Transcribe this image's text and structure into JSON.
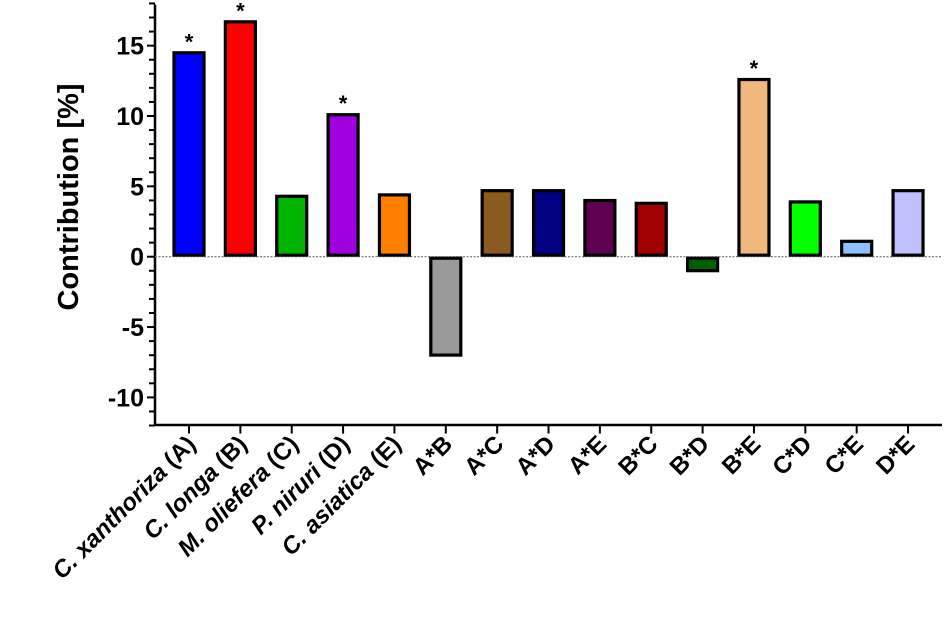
{
  "chart_data": {
    "type": "bar",
    "title": "",
    "xlabel": "",
    "ylabel": "Contribution [%]",
    "ylim": [
      -12,
      18
    ],
    "yticks": [
      -10,
      -5,
      0,
      5,
      10,
      15
    ],
    "yminor_step": 1,
    "grid": false,
    "legend": null,
    "zero_line": "dotted",
    "categories": [
      {
        "label": "C. xanthoriza (A)",
        "italic": "C. xanthoriza",
        "plain": " (A)"
      },
      {
        "label": "C. longa (B)",
        "italic": "C. longa",
        "plain": " (B)"
      },
      {
        "label": "M. oliefera (C)",
        "italic": "M. oliefera",
        "plain": " (C)"
      },
      {
        "label": "P. niruri (D)",
        "italic": "P. niruri",
        "plain": " (D)"
      },
      {
        "label": "C. asiatica (E)",
        "italic": "C. asiatica",
        "plain": " (E)"
      },
      {
        "label": "A*B",
        "italic": "",
        "plain": "A*B"
      },
      {
        "label": "A*C",
        "italic": "",
        "plain": "A*C"
      },
      {
        "label": "A*D",
        "italic": "",
        "plain": "A*D"
      },
      {
        "label": "A*E",
        "italic": "",
        "plain": "A*E"
      },
      {
        "label": "B*C",
        "italic": "",
        "plain": "B*C"
      },
      {
        "label": "B*D",
        "italic": "",
        "plain": "B*D"
      },
      {
        "label": "B*E",
        "italic": "",
        "plain": "B*E"
      },
      {
        "label": "C*D",
        "italic": "",
        "plain": "C*D"
      },
      {
        "label": "C*E",
        "italic": "",
        "plain": "C*E"
      },
      {
        "label": "D*E",
        "italic": "",
        "plain": "D*E"
      }
    ],
    "values": [
      14.6,
      16.8,
      4.4,
      10.2,
      4.5,
      -7.1,
      4.8,
      4.8,
      4.1,
      3.9,
      -1.1,
      12.7,
      4.0,
      1.2,
      4.8
    ],
    "colors": [
      "#0000ff",
      "#ff0000",
      "#00b400",
      "#a000e0",
      "#ff8000",
      "#9a9a9a",
      "#8b5a1e",
      "#000080",
      "#600050",
      "#a00000",
      "#006000",
      "#f0b87c",
      "#00ff00",
      "#90c0ff",
      "#c0c0ff"
    ],
    "significant": [
      true,
      true,
      false,
      true,
      false,
      false,
      false,
      false,
      false,
      false,
      false,
      true,
      false,
      false,
      false
    ],
    "significance_marker": "*"
  }
}
